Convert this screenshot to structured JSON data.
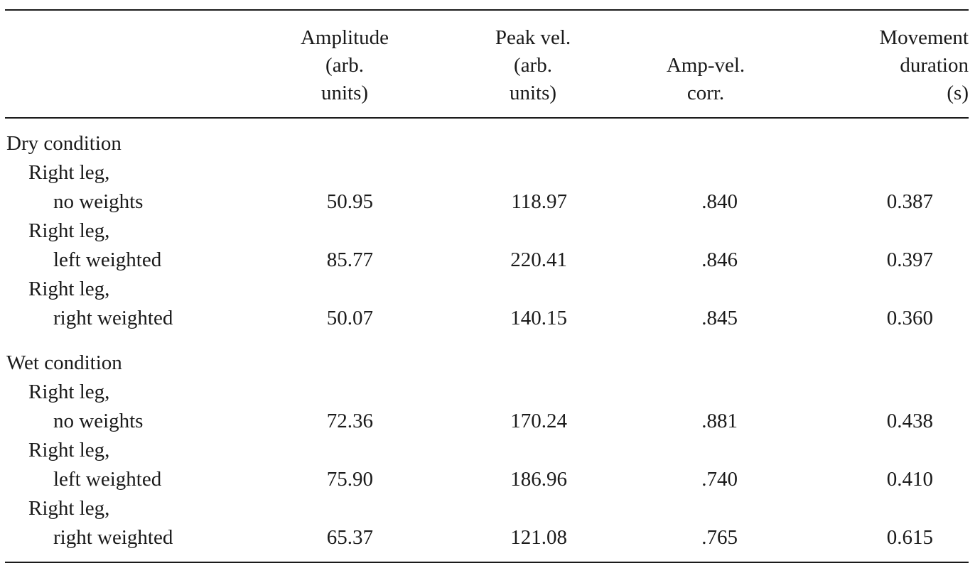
{
  "table": {
    "columns": [
      {
        "lines": [
          "Amplitude",
          "(arb.",
          "units)"
        ]
      },
      {
        "lines": [
          "Peak vel.",
          "(arb.",
          "units)"
        ]
      },
      {
        "lines": [
          "Amp-vel.",
          "corr."
        ]
      },
      {
        "lines": [
          "Movement",
          "duration",
          "(s)"
        ]
      }
    ],
    "groups": [
      {
        "label": "Dry condition",
        "rows": [
          {
            "line1": "Right leg,",
            "line2": "no weights",
            "amplitude": "50.95",
            "peak_vel": "118.97",
            "corr": ".840",
            "duration": "0.387"
          },
          {
            "line1": "Right leg,",
            "line2": "left weighted",
            "amplitude": "85.77",
            "peak_vel": "220.41",
            "corr": ".846",
            "duration": "0.397"
          },
          {
            "line1": "Right leg,",
            "line2": "right weighted",
            "amplitude": "50.07",
            "peak_vel": "140.15",
            "corr": ".845",
            "duration": "0.360"
          }
        ]
      },
      {
        "label": "Wet condition",
        "rows": [
          {
            "line1": "Right leg,",
            "line2": "no weights",
            "amplitude": "72.36",
            "peak_vel": "170.24",
            "corr": ".881",
            "duration": "0.438"
          },
          {
            "line1": "Right leg,",
            "line2": "left weighted",
            "amplitude": "75.90",
            "peak_vel": "186.96",
            "corr": ".740",
            "duration": "0.410"
          },
          {
            "line1": "Right leg,",
            "line2": "right weighted",
            "amplitude": "65.37",
            "peak_vel": "121.08",
            "corr": ".765",
            "duration": "0.615"
          }
        ]
      }
    ]
  }
}
